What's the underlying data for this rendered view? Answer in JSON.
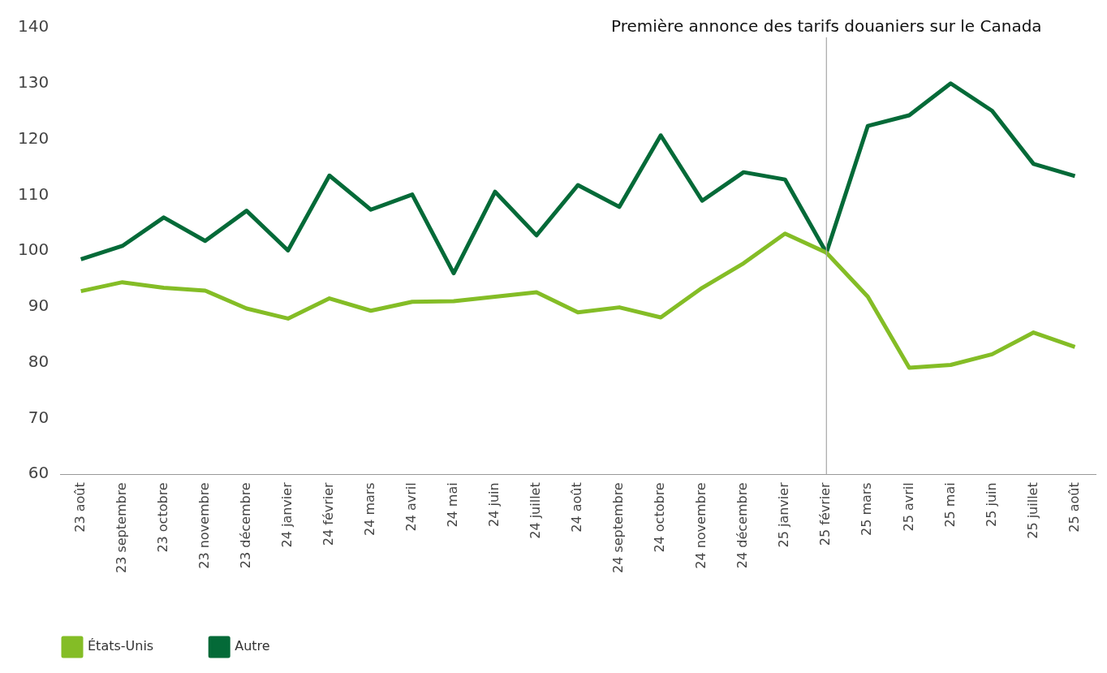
{
  "chart_data": {
    "type": "line",
    "categories": [
      "23 août",
      "23 septembre",
      "23 octobre",
      "23 novembre",
      "23 décembre",
      "24 janvier",
      "24 février",
      "24 mars",
      "24 avril",
      "24 mai",
      "24 juin",
      "24 juillet",
      "24 août",
      "24 septembre",
      "24 octobre",
      "24 novembre",
      "24 décembre",
      "25 janvier",
      "25 février",
      "25 mars",
      "25 avril",
      "25 mai",
      "25 juin",
      "25 juillet",
      "25 août"
    ],
    "series": [
      {
        "name": "États-Unis",
        "color": "#84bd26",
        "values": [
          92.8,
          94.4,
          93.4,
          92.9,
          89.7,
          87.9,
          91.5,
          89.3,
          90.9,
          91.0,
          91.8,
          92.6,
          89.0,
          89.9,
          88.1,
          93.4,
          97.8,
          103.1,
          99.7,
          91.8,
          79.1,
          79.6,
          81.5,
          85.4,
          82.8
        ]
      },
      {
        "name": "Autre",
        "color": "#046a38",
        "values": [
          98.5,
          100.9,
          106.0,
          101.8,
          107.2,
          100.1,
          113.5,
          107.4,
          110.1,
          96.0,
          110.6,
          102.8,
          111.8,
          107.9,
          120.7,
          109.0,
          114.1,
          112.8,
          99.7,
          122.4,
          124.3,
          130.0,
          125.1,
          115.6,
          113.4
        ]
      }
    ],
    "ylim": [
      60,
      140
    ],
    "yticks": [
      60,
      70,
      80,
      90,
      100,
      110,
      120,
      130,
      140
    ],
    "ref_lines": [
      {
        "axis": "x",
        "value": "25 février",
        "label": "Première annonce des tarifs douaniers sur le Canada",
        "color": "#a6a6a6"
      }
    ],
    "grid": false,
    "legend": "bottom left",
    "marker": "none",
    "line_style": "solid"
  }
}
